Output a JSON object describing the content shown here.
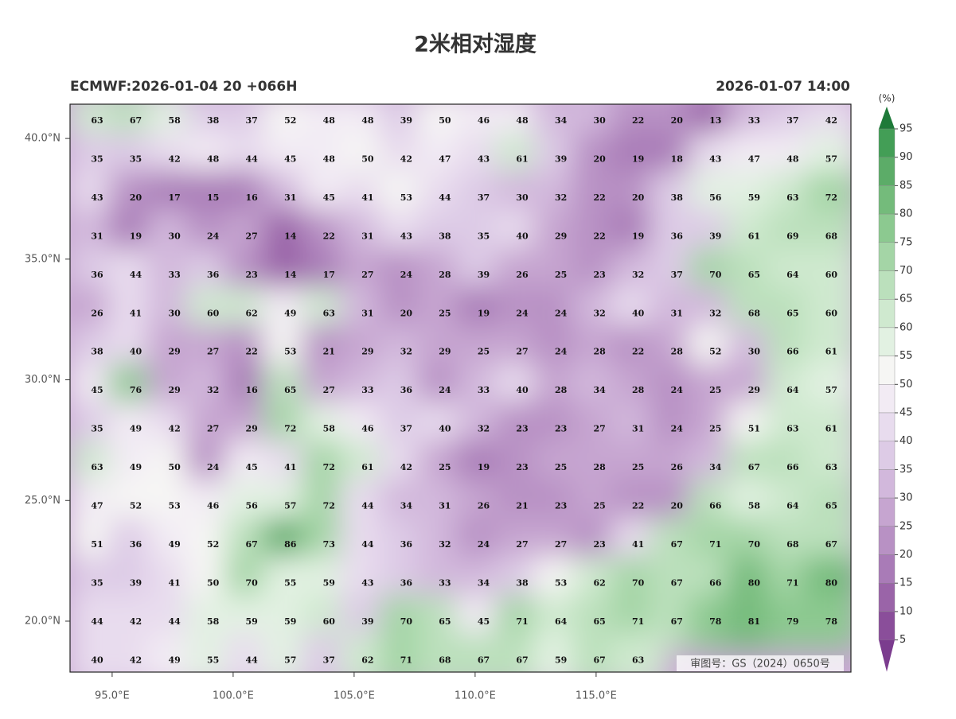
{
  "map": {
    "title": "2米相对湿度",
    "model_run": "ECMWF:2026-01-04 20 +066H",
    "valid_time": "2026-01-07 14:00",
    "xlim": [
      93.26,
      125.53
    ],
    "ylim": [
      17.89,
      41.42
    ],
    "lat_ticks": [
      {
        "value": 40,
        "label": "40.0°N"
      },
      {
        "value": 35,
        "label": "35.0°N"
      },
      {
        "value": 30,
        "label": "30.0°N"
      },
      {
        "value": 25,
        "label": "25.0°N"
      },
      {
        "value": 20,
        "label": "20.0°N"
      }
    ],
    "lon_ticks": [
      {
        "value": 95,
        "label": "95.0°E"
      },
      {
        "value": 100,
        "label": "100.0°E"
      },
      {
        "value": 105,
        "label": "105.0°E"
      },
      {
        "value": 110,
        "label": "110.0°E"
      },
      {
        "value": 115,
        "label": "115.0°E"
      }
    ],
    "grid": [
      [
        63,
        67,
        58,
        38,
        37,
        52,
        48,
        48,
        39,
        50,
        46,
        48,
        34,
        30,
        22,
        20,
        13,
        33,
        37,
        42
      ],
      [
        35,
        35,
        42,
        48,
        44,
        45,
        48,
        50,
        42,
        47,
        43,
        61,
        39,
        20,
        19,
        18,
        43,
        47,
        48,
        57
      ],
      [
        43,
        20,
        17,
        15,
        16,
        31,
        45,
        41,
        53,
        44,
        37,
        30,
        32,
        22,
        20,
        38,
        56,
        59,
        63,
        72
      ],
      [
        31,
        19,
        30,
        24,
        27,
        14,
        22,
        31,
        43,
        38,
        35,
        40,
        29,
        22,
        19,
        36,
        39,
        61,
        69,
        68
      ],
      [
        36,
        44,
        33,
        36,
        23,
        14,
        17,
        27,
        24,
        28,
        39,
        26,
        25,
        23,
        32,
        37,
        70,
        65,
        64,
        60
      ],
      [
        26,
        41,
        30,
        60,
        62,
        49,
        63,
        31,
        20,
        25,
        19,
        24,
        24,
        32,
        40,
        31,
        32,
        68,
        65,
        60
      ],
      [
        38,
        40,
        29,
        27,
        22,
        53,
        21,
        29,
        32,
        29,
        25,
        27,
        24,
        28,
        22,
        28,
        52,
        30,
        66,
        61
      ],
      [
        45,
        76,
        29,
        32,
        16,
        65,
        27,
        33,
        36,
        24,
        33,
        40,
        28,
        34,
        28,
        24,
        25,
        29,
        64,
        57
      ],
      [
        35,
        49,
        42,
        27,
        29,
        72,
        58,
        46,
        37,
        40,
        32,
        23,
        23,
        27,
        31,
        24,
        25,
        51,
        63,
        61
      ],
      [
        63,
        49,
        50,
        24,
        45,
        41,
        72,
        61,
        42,
        25,
        19,
        23,
        25,
        28,
        25,
        26,
        34,
        67,
        66,
        63
      ],
      [
        47,
        52,
        53,
        46,
        56,
        57,
        72,
        44,
        34,
        31,
        26,
        21,
        23,
        25,
        22,
        20,
        66,
        58,
        64,
        65
      ],
      [
        51,
        36,
        49,
        52,
        67,
        86,
        73,
        44,
        36,
        32,
        24,
        27,
        27,
        23,
        41,
        67,
        71,
        70,
        68,
        67
      ],
      [
        35,
        39,
        41,
        50,
        70,
        55,
        59,
        43,
        36,
        33,
        34,
        38,
        53,
        62,
        70,
        67,
        66,
        80,
        71,
        80
      ],
      [
        44,
        42,
        44,
        58,
        59,
        59,
        60,
        39,
        70,
        65,
        45,
        71,
        64,
        65,
        71,
        67,
        78,
        81,
        79,
        78
      ],
      [
        40,
        42,
        49,
        55,
        44,
        57,
        37,
        62,
        71,
        68,
        67,
        67,
        59,
        67,
        63,
        null,
        null,
        null,
        null,
        null
      ]
    ],
    "colorbar": {
      "unit": "(%)",
      "levels": [
        95,
        90,
        85,
        80,
        75,
        70,
        65,
        60,
        55,
        50,
        45,
        40,
        35,
        30,
        25,
        20,
        15,
        10,
        5
      ],
      "colors": [
        "#7b3c8e",
        "#8a4e9a",
        "#9a64a8",
        "#a97bb7",
        "#b891c4",
        "#c6a5d0",
        "#d2b8dc",
        "#ddcbe6",
        "#e8dcee",
        "#f2ebf4",
        "#f6f6f4",
        "#e2f1e2",
        "#cfe9cf",
        "#bbe0bc",
        "#a4d5a6",
        "#8cc990",
        "#74bb7b",
        "#5cac68",
        "#439e56",
        "#2c8c45",
        "#1e7a39"
      ]
    },
    "approval": "审图号：GS（2024）0650号"
  }
}
